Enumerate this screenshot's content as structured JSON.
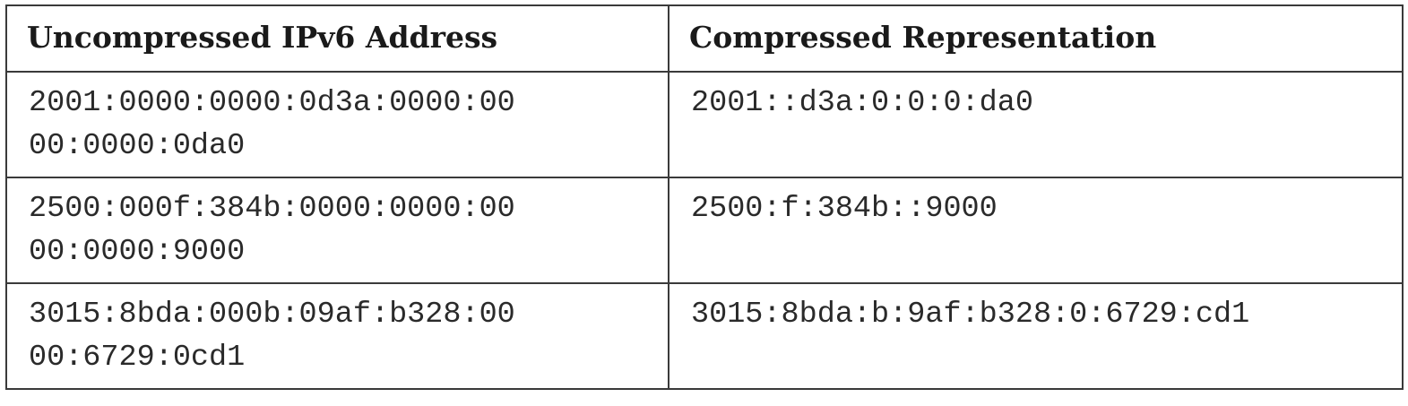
{
  "table": {
    "headers": [
      "Uncompressed IPv6 Address",
      "Compressed Representation"
    ],
    "rows": [
      {
        "uncompressed_line1": "2001:0000:0000:0d3a:0000:00",
        "uncompressed_line2": "00:0000:0da0",
        "compressed": "2001::d3a:0:0:0:da0"
      },
      {
        "uncompressed_line1": "2500:000f:384b:0000:0000:00",
        "uncompressed_line2": "00:0000:9000",
        "compressed": "2500:f:384b::9000"
      },
      {
        "uncompressed_line1": "3015:8bda:000b:09af:b328:00",
        "uncompressed_line2": "00:6729:0cd1",
        "compressed": "3015:8bda:b:9af:b328:0:6729:cd1"
      }
    ]
  }
}
